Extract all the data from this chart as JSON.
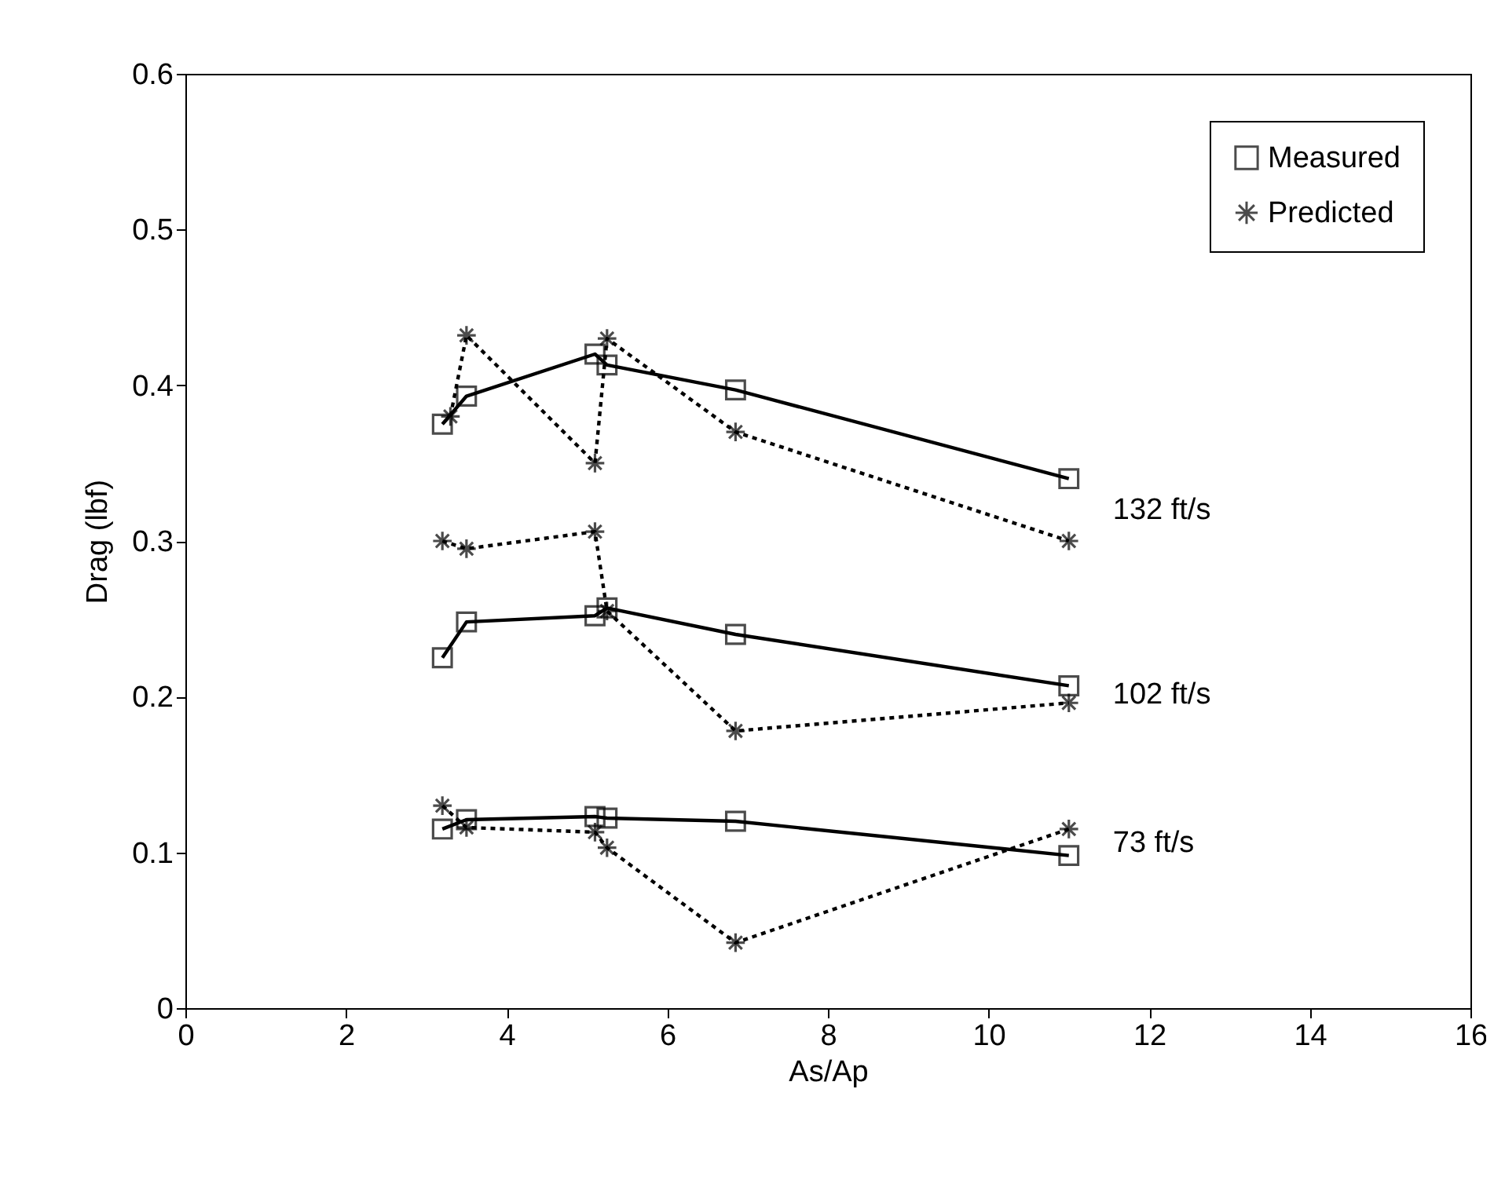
{
  "chart_data": {
    "type": "line",
    "xlabel": "As/Ap",
    "ylabel": "Drag (lbf)",
    "xlim": [
      0,
      16
    ],
    "ylim": [
      0,
      0.6
    ],
    "xticks": [
      0,
      2,
      4,
      6,
      8,
      10,
      12,
      14,
      16
    ],
    "yticks": [
      0,
      0.1,
      0.2,
      0.3,
      0.4,
      0.5,
      0.6
    ],
    "legend": "top right",
    "series": [
      {
        "name": "Measured",
        "color": "#000000",
        "marker": "square",
        "line_style": "solid",
        "x": [
          3.2,
          3.5,
          5.1,
          5.25,
          6.85,
          11
        ],
        "values": [
          0.375,
          0.393,
          0.42,
          0.413,
          0.397,
          0.34
        ]
      },
      {
        "name": "Predicted",
        "color": "#000000",
        "marker": "cross",
        "line_style": "dotted",
        "x": [
          3.3,
          3.5,
          5.1,
          5.25,
          6.85,
          11
        ],
        "values": [
          0.38,
          0.432,
          0.35,
          0.43,
          0.37,
          0.3
        ]
      },
      {
        "color": "#000000",
        "marker": "square",
        "line_style": "solid",
        "x": [
          3.2,
          3.5,
          5.1,
          5.25,
          6.85,
          11
        ],
        "values": [
          0.225,
          0.248,
          0.252,
          0.257,
          0.24,
          0.207
        ]
      },
      {
        "color": "#000000",
        "marker": "cross",
        "line_style": "dotted",
        "x": [
          3.2,
          3.5,
          5.1,
          5.25,
          6.85,
          11
        ],
        "values": [
          0.3,
          0.295,
          0.306,
          0.255,
          0.178,
          0.196
        ]
      },
      {
        "color": "#000000",
        "marker": "square",
        "line_style": "solid",
        "x": [
          3.2,
          3.5,
          5.1,
          5.25,
          6.85,
          11
        ],
        "values": [
          0.115,
          0.121,
          0.123,
          0.122,
          0.12,
          0.098
        ]
      },
      {
        "color": "#000000",
        "marker": "cross",
        "line_style": "dotted",
        "x": [
          3.2,
          3.5,
          5.1,
          5.25,
          6.85,
          11
        ],
        "values": [
          0.13,
          0.116,
          0.113,
          0.103,
          0.042,
          0.115
        ]
      }
    ],
    "annotations": [
      "132 ft/s",
      "102 ft/s",
      "73 ft/s"
    ]
  }
}
